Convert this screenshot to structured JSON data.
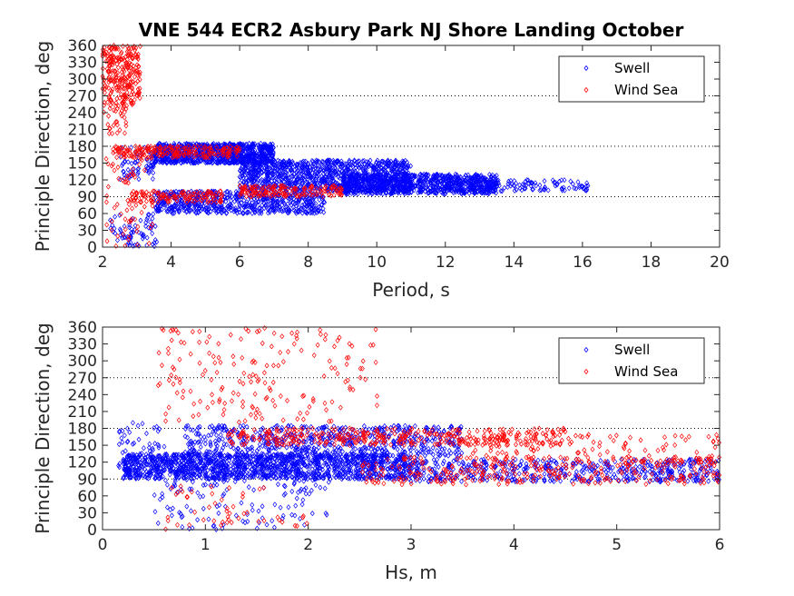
{
  "title": "VNE 544 ECR2 Asbury Park NJ Shore Landing October",
  "chart_data": [
    {
      "type": "scatter",
      "xlabel": "Period, s",
      "ylabel": "Principle Direction, deg",
      "xlim": [
        2,
        20
      ],
      "ylim": [
        0,
        360
      ],
      "xticks": [
        "2",
        "4",
        "6",
        "8",
        "10",
        "12",
        "14",
        "16",
        "18",
        "20"
      ],
      "yticks": [
        "0",
        "30",
        "60",
        "90",
        "120",
        "150",
        "180",
        "210",
        "240",
        "270",
        "300",
        "330",
        "360"
      ],
      "ref_lines": [
        90,
        180,
        270
      ],
      "legend": {
        "placement": "top-right",
        "items": [
          "Swell",
          "Wind Sea"
        ]
      },
      "series": [
        {
          "name": "Swell",
          "color": "#0000ff",
          "marker": "diamond",
          "clusters": [
            {
              "x": [
                3.5,
                7.0
              ],
              "y": [
                150,
                185
              ],
              "n": 900
            },
            {
              "x": [
                6.0,
                11.0
              ],
              "y": [
                100,
                155
              ],
              "n": 1000
            },
            {
              "x": [
                9.0,
                13.5
              ],
              "y": [
                95,
                130
              ],
              "n": 800
            },
            {
              "x": [
                12.0,
                16.2
              ],
              "y": [
                100,
                120
              ],
              "n": 150
            },
            {
              "x": [
                3.5,
                8.5
              ],
              "y": [
                60,
                100
              ],
              "n": 600
            },
            {
              "x": [
                2.2,
                3.6
              ],
              "y": [
                0,
                60
              ],
              "n": 70
            },
            {
              "x": [
                2.5,
                3.5
              ],
              "y": [
                120,
                180
              ],
              "n": 60
            }
          ]
        },
        {
          "name": "Wind Sea",
          "color": "#ff0000",
          "marker": "diamond",
          "clusters": [
            {
              "x": [
                2.0,
                3.1
              ],
              "y": [
                250,
                360
              ],
              "n": 260
            },
            {
              "x": [
                2.0,
                2.7
              ],
              "y": [
                200,
                260
              ],
              "n": 30
            },
            {
              "x": [
                2.3,
                6.0
              ],
              "y": [
                160,
                180
              ],
              "n": 200
            },
            {
              "x": [
                2.8,
                5.5
              ],
              "y": [
                80,
                100
              ],
              "n": 120
            },
            {
              "x": [
                6.0,
                9.0
              ],
              "y": [
                90,
                110
              ],
              "n": 150
            },
            {
              "x": [
                2.1,
                3.5
              ],
              "y": [
                0,
                160
              ],
              "n": 60
            }
          ]
        }
      ]
    },
    {
      "type": "scatter",
      "xlabel": "Hs, m",
      "ylabel": "Principle Direction, deg",
      "xlim": [
        0,
        6
      ],
      "ylim": [
        0,
        360
      ],
      "xticks": [
        "0",
        "1",
        "2",
        "3",
        "4",
        "5",
        "6"
      ],
      "yticks": [
        "0",
        "30",
        "60",
        "90",
        "120",
        "150",
        "180",
        "210",
        "240",
        "270",
        "300",
        "330",
        "360"
      ],
      "ref_lines": [
        90,
        180,
        270
      ],
      "legend": {
        "placement": "top-right",
        "items": [
          "Swell",
          "Wind Sea"
        ]
      },
      "series": [
        {
          "name": "Swell",
          "color": "#0000ff",
          "marker": "diamond",
          "clusters": [
            {
              "x": [
                0.2,
                3.0
              ],
              "y": [
                90,
                135
              ],
              "n": 1400
            },
            {
              "x": [
                0.8,
                3.5
              ],
              "y": [
                130,
                185
              ],
              "n": 600
            },
            {
              "x": [
                3.0,
                6.0
              ],
              "y": [
                85,
                125
              ],
              "n": 500
            },
            {
              "x": [
                0.5,
                2.2
              ],
              "y": [
                0,
                90
              ],
              "n": 120
            },
            {
              "x": [
                0.15,
                0.6
              ],
              "y": [
                100,
                190
              ],
              "n": 60
            }
          ]
        },
        {
          "name": "Wind Sea",
          "color": "#ff0000",
          "marker": "diamond",
          "clusters": [
            {
              "x": [
                0.5,
                2.7
              ],
              "y": [
                190,
                360
              ],
              "n": 180
            },
            {
              "x": [
                1.2,
                4.5
              ],
              "y": [
                150,
                180
              ],
              "n": 350
            },
            {
              "x": [
                2.5,
                6.0
              ],
              "y": [
                80,
                130
              ],
              "n": 300
            },
            {
              "x": [
                3.5,
                6.0
              ],
              "y": [
                120,
                170
              ],
              "n": 120
            },
            {
              "x": [
                0.6,
                2.0
              ],
              "y": [
                0,
                80
              ],
              "n": 50
            }
          ]
        }
      ]
    }
  ]
}
